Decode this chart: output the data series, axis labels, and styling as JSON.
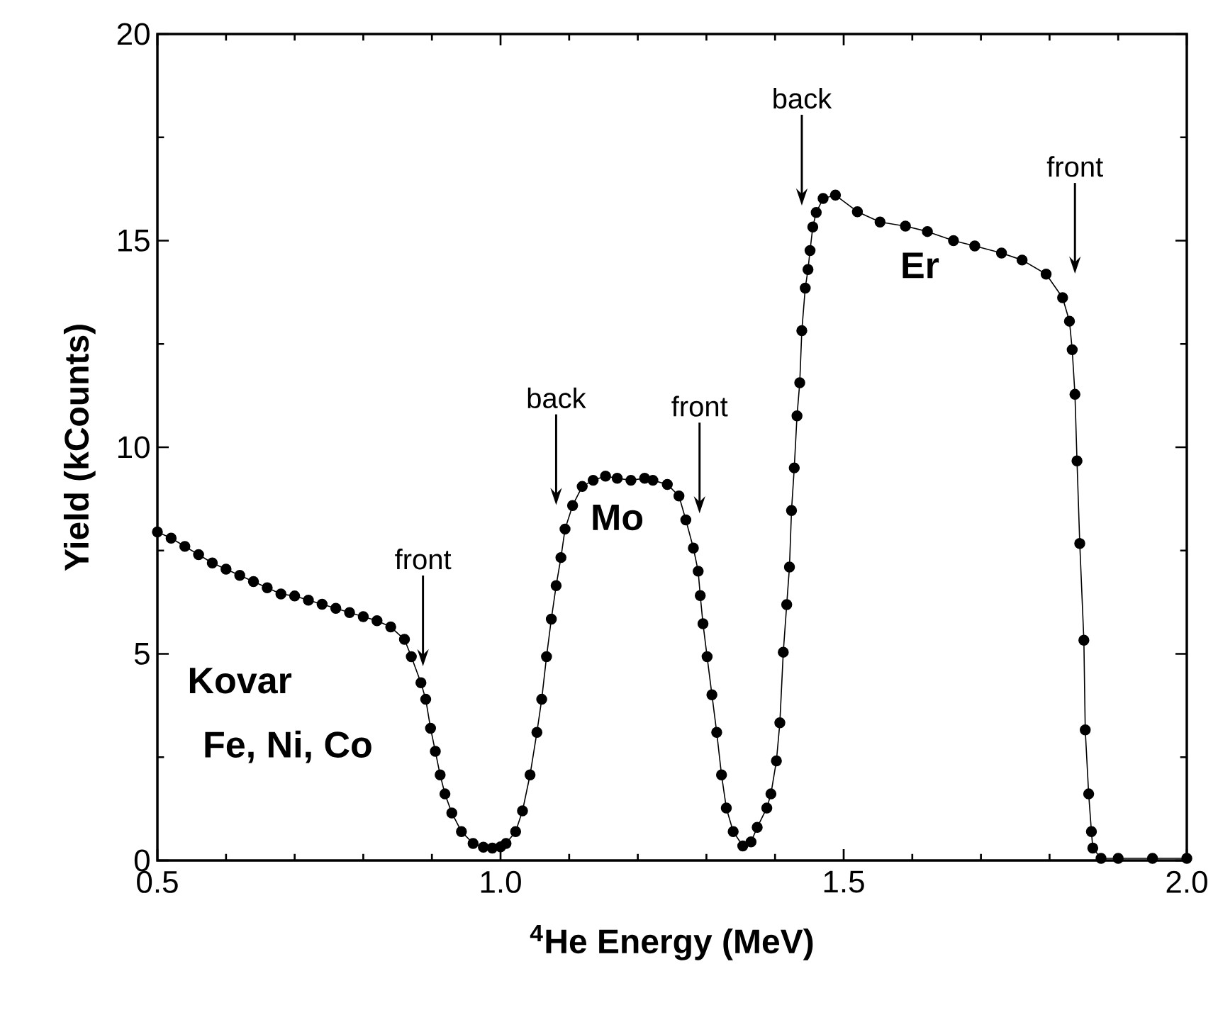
{
  "chart_data": {
    "type": "line",
    "xlabel": "$^{4}$He Energy (MeV)",
    "ylabel": "Yield (kCounts)",
    "xlim": [
      0.5,
      2.0
    ],
    "ylim": [
      0,
      20
    ],
    "xticks": [
      {
        "value": 0.5,
        "label": "0.5"
      },
      {
        "value": 1.0,
        "label": "1.0"
      },
      {
        "value": 1.5,
        "label": "1.5"
      },
      {
        "value": 2.0,
        "label": "2.0"
      }
    ],
    "yticks": [
      0,
      5,
      10,
      15,
      20
    ],
    "marker": "circle",
    "line_style": "solid",
    "series": [
      {
        "color": "#000000",
        "x": [
          0.5,
          0.52,
          0.54,
          0.56,
          0.58,
          0.6,
          0.62,
          0.64,
          0.66,
          0.68,
          0.7,
          0.72,
          0.74,
          0.76,
          0.78,
          0.8,
          0.82,
          0.84,
          0.86,
          0.87,
          0.884,
          0.891,
          0.898,
          0.905,
          0.912,
          0.919,
          0.929,
          0.943,
          0.96,
          0.975,
          0.988,
          1.0,
          1.008,
          1.022,
          1.032,
          1.043,
          1.053,
          1.06,
          1.067,
          1.074,
          1.081,
          1.088,
          1.094,
          1.105,
          1.119,
          1.135,
          1.153,
          1.17,
          1.19,
          1.21,
          1.222,
          1.243,
          1.26,
          1.27,
          1.281,
          1.288,
          1.291,
          1.295,
          1.301,
          1.308,
          1.315,
          1.322,
          1.329,
          1.339,
          1.353,
          1.365,
          1.374,
          1.388,
          1.394,
          1.402,
          1.407,
          1.412,
          1.417,
          1.421,
          1.424,
          1.428,
          1.432,
          1.436,
          1.439,
          1.444,
          1.448,
          1.451,
          1.455,
          1.46,
          1.47,
          1.488,
          1.52,
          1.553,
          1.59,
          1.622,
          1.66,
          1.691,
          1.73,
          1.76,
          1.795,
          1.819,
          1.829,
          1.833,
          1.837,
          1.84,
          1.844,
          1.85,
          1.852,
          1.857,
          1.861,
          1.863,
          1.875,
          1.9,
          1.95,
          2.0
        ],
        "values": [
          7.95,
          7.8,
          7.6,
          7.4,
          7.2,
          7.05,
          6.9,
          6.75,
          6.6,
          6.45,
          6.4,
          6.3,
          6.2,
          6.1,
          6.0,
          5.9,
          5.8,
          5.65,
          5.35,
          4.93,
          4.3,
          3.9,
          3.2,
          2.64,
          2.07,
          1.61,
          1.15,
          0.7,
          0.41,
          0.32,
          0.3,
          0.33,
          0.41,
          0.7,
          1.2,
          2.07,
          3.1,
          3.9,
          4.93,
          5.84,
          6.65,
          7.33,
          8.02,
          8.59,
          9.05,
          9.2,
          9.3,
          9.25,
          9.2,
          9.25,
          9.2,
          9.1,
          8.82,
          8.24,
          7.56,
          7.0,
          6.41,
          5.73,
          4.93,
          4.01,
          3.1,
          2.07,
          1.27,
          0.7,
          0.35,
          0.45,
          0.8,
          1.27,
          1.61,
          2.41,
          3.33,
          5.04,
          6.19,
          7.1,
          8.47,
          9.5,
          10.76,
          11.56,
          12.82,
          13.85,
          14.3,
          14.76,
          15.33,
          15.68,
          16.02,
          16.1,
          15.7,
          15.45,
          15.35,
          15.22,
          15.0,
          14.87,
          14.7,
          14.53,
          14.19,
          13.62,
          13.05,
          12.36,
          11.28,
          9.67,
          7.67,
          5.33,
          3.16,
          1.61,
          0.7,
          0.3,
          0.05,
          0.05,
          0.05,
          0.05
        ]
      }
    ],
    "annotations": [
      "front",
      "back",
      "front",
      "back",
      "front",
      "Kovar",
      "Fe, Ni, Co",
      "Mo",
      "Er"
    ]
  }
}
